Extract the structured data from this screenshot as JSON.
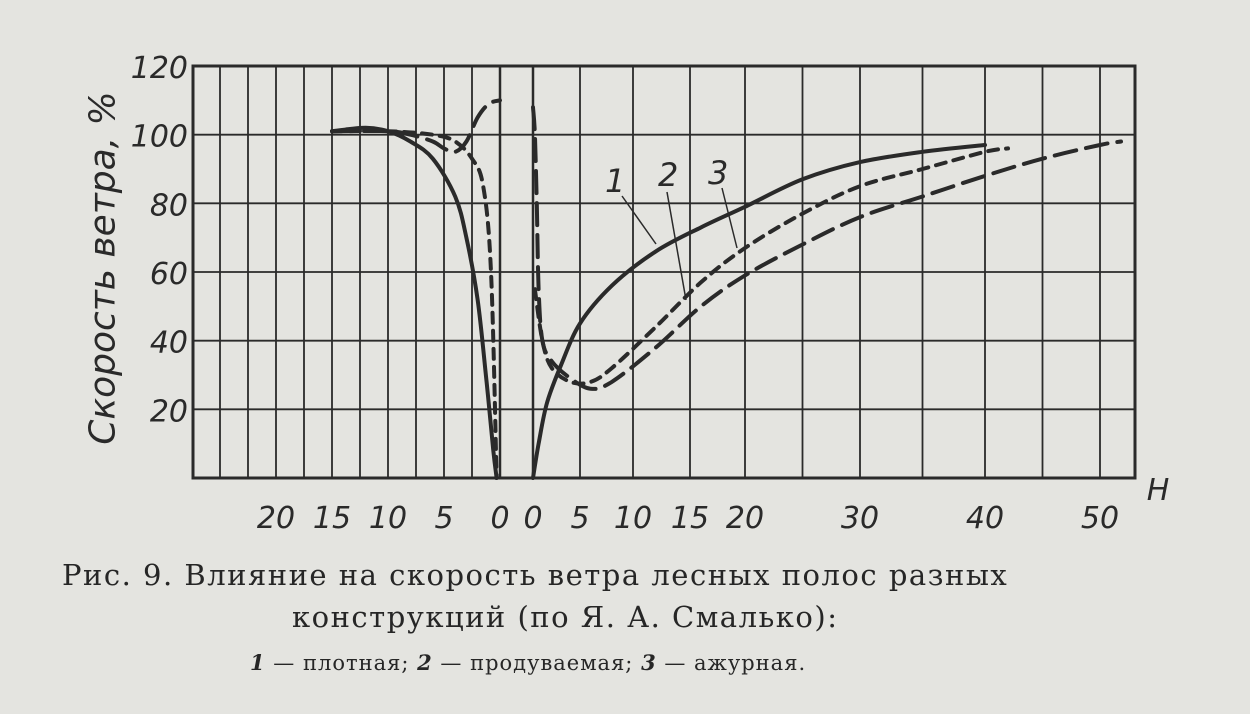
{
  "chart_data": {
    "type": "line",
    "ylabel": "Скорость ветра, %",
    "xlabel": "H",
    "ylim": [
      0,
      120
    ],
    "y_ticks": [
      "20",
      "40",
      "60",
      "80",
      "100",
      "120"
    ],
    "x_ticks_windward": [
      "20",
      "15",
      "10",
      "5",
      "0"
    ],
    "x_ticks_leeward": [
      "0",
      "5",
      "10",
      "15",
      "20",
      "30",
      "40",
      "50"
    ],
    "grid": true,
    "series": [
      {
        "name": "1",
        "style": "solid",
        "windward": [
          [
            15,
            101
          ],
          [
            12,
            102
          ],
          [
            10,
            101
          ],
          [
            8,
            98
          ],
          [
            6,
            93
          ],
          [
            4,
            82
          ],
          [
            3,
            70
          ],
          [
            2,
            52
          ],
          [
            1.2,
            28
          ],
          [
            0.6,
            8
          ],
          [
            0.3,
            0
          ]
        ],
        "leeward": [
          [
            0,
            0
          ],
          [
            0.6,
            10
          ],
          [
            1.5,
            22
          ],
          [
            3,
            33
          ],
          [
            5,
            45
          ],
          [
            8,
            56
          ],
          [
            12,
            66
          ],
          [
            16,
            73
          ],
          [
            20,
            79
          ],
          [
            25,
            87
          ],
          [
            30,
            92
          ],
          [
            35,
            95
          ],
          [
            40,
            97
          ]
        ]
      },
      {
        "name": "2",
        "style": "dashed",
        "windward": [
          [
            15,
            101
          ],
          [
            10,
            101
          ],
          [
            6,
            100
          ],
          [
            4,
            98
          ],
          [
            2.5,
            93
          ],
          [
            1.5,
            85
          ],
          [
            0.8,
            60
          ],
          [
            0.3,
            0
          ]
        ],
        "leeward": [
          [
            0.2,
            55
          ],
          [
            1,
            40
          ],
          [
            2,
            32
          ],
          [
            4,
            28
          ],
          [
            6,
            28
          ],
          [
            8,
            32
          ],
          [
            12,
            44
          ],
          [
            16,
            57
          ],
          [
            20,
            67
          ],
          [
            25,
            77
          ],
          [
            30,
            85
          ],
          [
            35,
            90
          ],
          [
            40,
            95
          ],
          [
            42,
            96
          ]
        ]
      },
      {
        "name": "3",
        "style": "dashed",
        "windward": [
          [
            15,
            101
          ],
          [
            10,
            101
          ],
          [
            8,
            100
          ],
          [
            6,
            98
          ],
          [
            5,
            96
          ],
          [
            4,
            95
          ],
          [
            3,
            98
          ],
          [
            2,
            105
          ],
          [
            1,
            109
          ],
          [
            0,
            110
          ]
        ],
        "leeward": [
          [
            0,
            108
          ],
          [
            0.2,
            100
          ],
          [
            0.4,
            80
          ],
          [
            0.6,
            55
          ],
          [
            1,
            40
          ],
          [
            2,
            34
          ],
          [
            4,
            29
          ],
          [
            6,
            26
          ],
          [
            8,
            28
          ],
          [
            12,
            38
          ],
          [
            16,
            50
          ],
          [
            20,
            59
          ],
          [
            25,
            68
          ],
          [
            30,
            76
          ],
          [
            35,
            82
          ],
          [
            40,
            88
          ],
          [
            45,
            93
          ],
          [
            50,
            97
          ],
          [
            53,
            98
          ]
        ]
      }
    ]
  },
  "caption": {
    "line1": "Рис. 9. Влияние на  скорость ветра  лесных полос  разных",
    "line2": "конструкций  (по Я. А. Смалько):",
    "legend": [
      {
        "num": "1",
        "text": " — плотная; "
      },
      {
        "num": "2",
        "text": " — продуваемая; "
      },
      {
        "num": "3",
        "text": " — ажурная."
      }
    ]
  },
  "colors": {
    "ink": "#2a2a2a",
    "paper": "#e4e4e0"
  }
}
